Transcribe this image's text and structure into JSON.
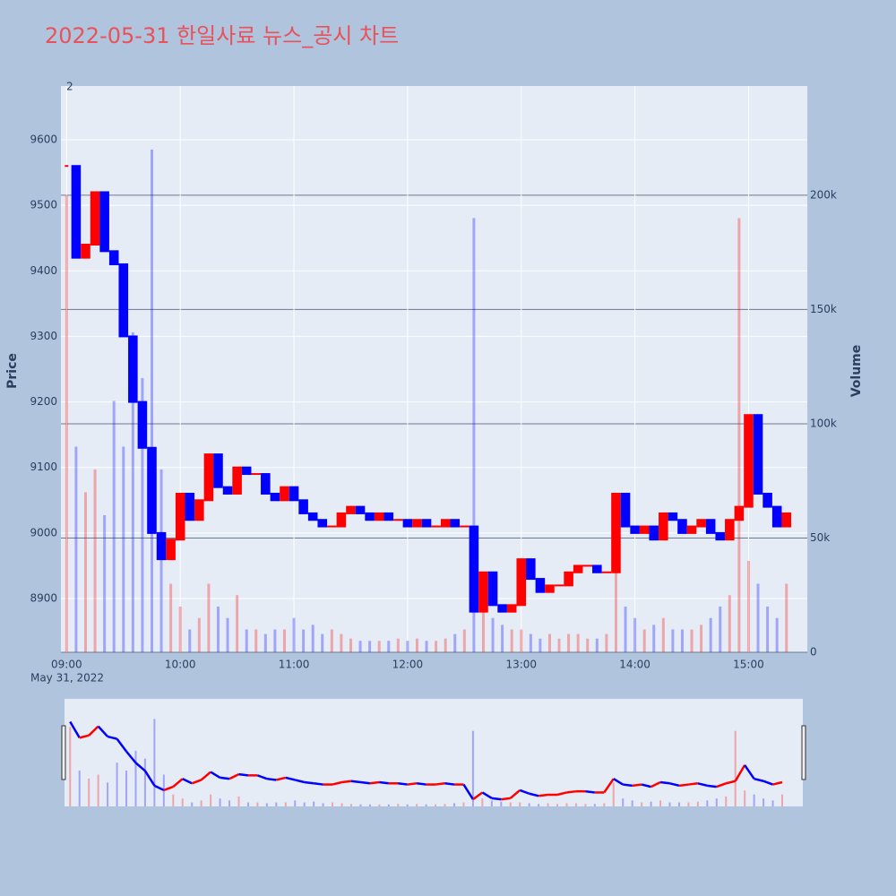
{
  "chart_data": {
    "type": "candlestick",
    "title": "2022-05-31 한일사료 뉴스_공시 차트",
    "annotation": "2",
    "y_label": "Price",
    "y2_label": "Volume",
    "x_date_label": "May 31, 2022",
    "up_color": "#ff0000",
    "down_color": "#0000ff",
    "x": [
      "09:00",
      "09:05",
      "09:10",
      "09:15",
      "09:20",
      "09:25",
      "09:30",
      "09:35",
      "09:40",
      "09:45",
      "09:50",
      "09:55",
      "10:00",
      "10:05",
      "10:10",
      "10:15",
      "10:20",
      "10:25",
      "10:30",
      "10:35",
      "10:40",
      "10:45",
      "10:50",
      "10:55",
      "11:00",
      "11:05",
      "11:10",
      "11:15",
      "11:20",
      "11:25",
      "11:30",
      "11:35",
      "11:40",
      "11:45",
      "11:50",
      "11:55",
      "12:00",
      "12:05",
      "12:10",
      "12:15",
      "12:20",
      "12:25",
      "12:30",
      "12:35",
      "12:40",
      "12:45",
      "12:50",
      "12:55",
      "13:00",
      "13:05",
      "13:10",
      "13:15",
      "13:20",
      "13:25",
      "13:30",
      "13:35",
      "13:40",
      "13:45",
      "13:50",
      "13:55",
      "14:00",
      "14:05",
      "14:10",
      "14:15",
      "14:20",
      "14:25",
      "14:30",
      "14:35",
      "14:40",
      "14:45",
      "14:50",
      "14:55",
      "15:00",
      "15:05",
      "15:10",
      "15:15",
      "15:20"
    ],
    "series": [
      {
        "name": "Price",
        "values": [
          9560,
          9420,
          9440,
          9520,
          9430,
          9410,
          9300,
          9200,
          9130,
          9000,
          8960,
          8990,
          9060,
          9020,
          9050,
          9120,
          9070,
          9060,
          9100,
          9090,
          9090,
          9060,
          9050,
          9070,
          9050,
          9030,
          9020,
          9010,
          9010,
          9030,
          9040,
          9030,
          9020,
          9030,
          9020,
          9020,
          9010,
          9020,
          9010,
          9010,
          9020,
          9010,
          9010,
          8880,
          8940,
          8890,
          8880,
          8890,
          8960,
          8930,
          8910,
          8920,
          8920,
          8940,
          8950,
          8950,
          8940,
          8940,
          9060,
          9010,
          9000,
          9010,
          8990,
          9030,
          9020,
          9000,
          9010,
          9020,
          9000,
          8990,
          9020,
          9040,
          9180,
          9060,
          9040,
          9010,
          9030
        ]
      },
      {
        "name": "Volume",
        "axis": "y2",
        "values": [
          200000,
          90000,
          70000,
          80000,
          60000,
          110000,
          90000,
          140000,
          120000,
          220000,
          80000,
          30000,
          20000,
          10000,
          15000,
          30000,
          20000,
          15000,
          25000,
          10000,
          10000,
          8000,
          10000,
          10000,
          15000,
          10000,
          12000,
          8000,
          10000,
          8000,
          6000,
          5000,
          5000,
          5000,
          5000,
          6000,
          5000,
          6000,
          5000,
          5000,
          6000,
          8000,
          10000,
          190000,
          20000,
          15000,
          12000,
          10000,
          10000,
          8000,
          6000,
          8000,
          6000,
          8000,
          8000,
          6000,
          6000,
          8000,
          60000,
          20000,
          15000,
          10000,
          12000,
          15000,
          10000,
          10000,
          10000,
          12000,
          15000,
          20000,
          25000,
          190000,
          40000,
          30000,
          20000,
          15000,
          30000
        ]
      }
    ],
    "xlim": [
      "08:57",
      "15:31"
    ],
    "xticks": [
      "09:00",
      "10:00",
      "11:00",
      "12:00",
      "13:00",
      "14:00",
      "15:00"
    ],
    "ylim": [
      8818,
      9682
    ],
    "yticks": [
      8900,
      9000,
      9100,
      9200,
      9300,
      9400,
      9500,
      9600
    ],
    "y2lim": [
      0,
      247800
    ],
    "y2ticks": [
      0,
      {
        "value": 50000,
        "label": "50k"
      },
      {
        "value": 100000,
        "label": "100k"
      },
      {
        "value": 150000,
        "label": "150k"
      },
      {
        "value": 200000,
        "label": "200k"
      }
    ],
    "grid": true
  }
}
